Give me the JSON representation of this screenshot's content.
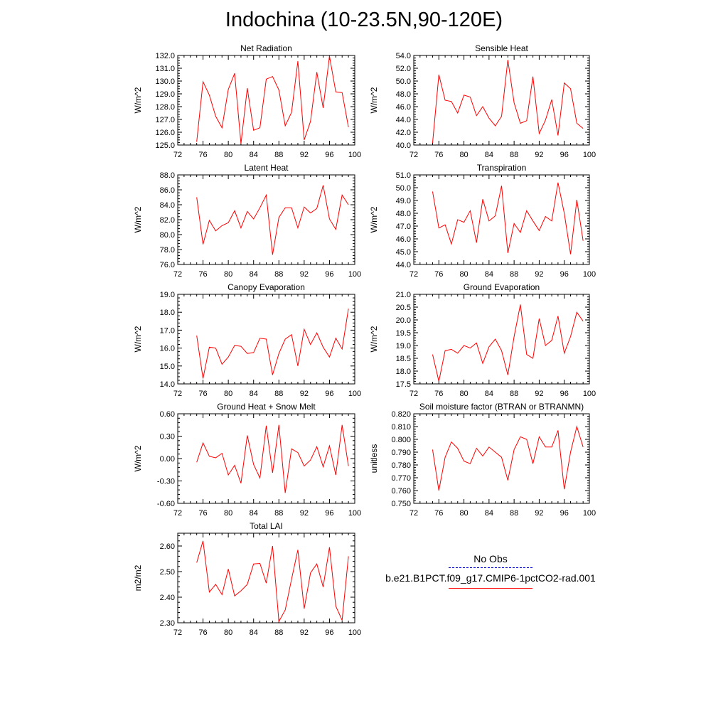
{
  "title": "Indochina (10-23.5N,90-120E)",
  "colors": {
    "series": "#ff0000",
    "obs": "#0000cc",
    "axis": "#000000"
  },
  "legend": {
    "obs_label": "No Obs",
    "model_label": "b.e21.B1PCT.f09_g17.CMIP6-1pctCO2-rad.001"
  },
  "chart_data": [
    {
      "type": "line",
      "title": "Net Radiation",
      "ylabel": "W/m^2",
      "xlim": [
        72,
        100
      ],
      "xticks": [
        "72",
        "76",
        "80",
        "84",
        "88",
        "92",
        "96",
        "100"
      ],
      "ylim": [
        125,
        132
      ],
      "yticks": [
        "125.0",
        "126.0",
        "127.0",
        "128.0",
        "129.0",
        "130.0",
        "131.0",
        "132.0"
      ],
      "x": [
        75,
        76,
        77,
        78,
        79,
        80,
        81,
        82,
        83,
        84,
        85,
        86,
        87,
        88,
        89,
        90,
        91,
        92,
        93,
        94,
        95,
        96,
        97,
        98,
        99
      ],
      "series": [
        {
          "values": [
            125.25,
            129.95,
            128.9,
            127.25,
            126.35,
            129.35,
            130.6,
            125.1,
            129.45,
            126.15,
            126.35,
            130.15,
            130.35,
            129.3,
            126.5,
            127.55,
            131.55,
            125.4,
            126.85,
            130.7,
            127.9,
            131.95,
            129.15,
            129.1,
            126.4
          ]
        }
      ]
    },
    {
      "type": "line",
      "title": "Sensible Heat",
      "ylabel": "W/m^2",
      "xlim": [
        72,
        100
      ],
      "xticks": [
        "72",
        "76",
        "80",
        "84",
        "88",
        "92",
        "96",
        "100"
      ],
      "ylim": [
        40,
        54
      ],
      "yticks": [
        "40.0",
        "42.0",
        "44.0",
        "46.0",
        "48.0",
        "50.0",
        "52.0",
        "54.0"
      ],
      "x": [
        75,
        76,
        77,
        78,
        79,
        80,
        81,
        82,
        83,
        84,
        85,
        86,
        87,
        88,
        89,
        90,
        91,
        92,
        93,
        94,
        95,
        96,
        97,
        98,
        99
      ],
      "series": [
        {
          "values": [
            40.3,
            51.0,
            47.0,
            46.8,
            45.0,
            47.8,
            47.5,
            44.6,
            46.0,
            44.2,
            43.0,
            44.5,
            53.3,
            46.6,
            43.4,
            43.8,
            50.7,
            41.8,
            43.9,
            47.1,
            41.5,
            49.7,
            48.8,
            43.4,
            42.6
          ]
        }
      ]
    },
    {
      "type": "line",
      "title": "Latent Heat",
      "ylabel": "W/m^2",
      "xlim": [
        72,
        100
      ],
      "xticks": [
        "72",
        "76",
        "80",
        "84",
        "88",
        "92",
        "96",
        "100"
      ],
      "ylim": [
        76,
        88
      ],
      "yticks": [
        "76.0",
        "78.0",
        "80.0",
        "82.0",
        "84.0",
        "86.0",
        "88.0"
      ],
      "x": [
        75,
        76,
        77,
        78,
        79,
        80,
        81,
        82,
        83,
        84,
        85,
        86,
        87,
        88,
        89,
        90,
        91,
        92,
        93,
        94,
        95,
        96,
        97,
        98,
        99
      ],
      "series": [
        {
          "values": [
            85.0,
            78.7,
            81.9,
            80.5,
            81.2,
            81.6,
            83.2,
            80.9,
            83.1,
            82.1,
            83.6,
            85.3,
            77.3,
            82.3,
            83.6,
            83.6,
            80.9,
            83.7,
            82.9,
            83.5,
            86.6,
            82.1,
            80.7,
            85.3,
            84.0
          ]
        }
      ]
    },
    {
      "type": "line",
      "title": "Transpiration",
      "ylabel": "W/m^2",
      "xlim": [
        72,
        100
      ],
      "xticks": [
        "72",
        "76",
        "80",
        "84",
        "88",
        "92",
        "96",
        "100"
      ],
      "ylim": [
        44,
        51
      ],
      "yticks": [
        "44.0",
        "45.0",
        "46.0",
        "47.0",
        "48.0",
        "49.0",
        "50.0",
        "51.0"
      ],
      "x": [
        75,
        76,
        77,
        78,
        79,
        80,
        81,
        82,
        83,
        84,
        85,
        86,
        87,
        88,
        89,
        90,
        91,
        92,
        93,
        94,
        95,
        96,
        97,
        98,
        99
      ],
      "series": [
        {
          "values": [
            49.7,
            46.85,
            47.1,
            45.6,
            47.5,
            47.3,
            48.2,
            45.7,
            49.1,
            47.4,
            47.8,
            50.15,
            44.9,
            47.2,
            46.5,
            48.2,
            47.4,
            46.65,
            47.75,
            47.4,
            50.4,
            48.0,
            44.8,
            49.05,
            45.85
          ]
        }
      ]
    },
    {
      "type": "line",
      "title": "Canopy Evaporation",
      "ylabel": "W/m^2",
      "xlim": [
        72,
        100
      ],
      "xticks": [
        "72",
        "76",
        "80",
        "84",
        "88",
        "92",
        "96",
        "100"
      ],
      "ylim": [
        14,
        19
      ],
      "yticks": [
        "14.0",
        "15.0",
        "16.0",
        "17.0",
        "18.0",
        "19.0"
      ],
      "x": [
        75,
        76,
        77,
        78,
        79,
        80,
        81,
        82,
        83,
        84,
        85,
        86,
        87,
        88,
        89,
        90,
        91,
        92,
        93,
        94,
        95,
        96,
        97,
        98,
        99
      ],
      "series": [
        {
          "values": [
            16.7,
            14.3,
            16.05,
            16.0,
            15.1,
            15.5,
            16.15,
            16.1,
            15.7,
            15.75,
            16.55,
            16.5,
            14.5,
            15.7,
            16.5,
            16.75,
            15.0,
            17.05,
            16.2,
            16.85,
            16.05,
            15.5,
            16.55,
            15.95,
            18.2
          ]
        }
      ]
    },
    {
      "type": "line",
      "title": "Ground Evaporation",
      "ylabel": "W/m^2",
      "xlim": [
        72,
        100
      ],
      "xticks": [
        "72",
        "76",
        "80",
        "84",
        "88",
        "92",
        "96",
        "100"
      ],
      "ylim": [
        17.5,
        21
      ],
      "yticks": [
        "17.5",
        "18.0",
        "18.5",
        "19.0",
        "19.5",
        "20.0",
        "20.5",
        "21.0"
      ],
      "x": [
        75,
        76,
        77,
        78,
        79,
        80,
        81,
        82,
        83,
        84,
        85,
        86,
        87,
        88,
        89,
        90,
        91,
        92,
        93,
        94,
        95,
        96,
        97,
        98,
        99
      ],
      "series": [
        {
          "values": [
            18.65,
            17.6,
            18.8,
            18.85,
            18.7,
            19.0,
            18.9,
            19.1,
            18.3,
            18.95,
            19.25,
            18.8,
            17.85,
            19.35,
            20.6,
            18.65,
            18.5,
            20.05,
            19.0,
            19.2,
            20.15,
            18.7,
            19.35,
            20.3,
            19.95
          ]
        }
      ]
    },
    {
      "type": "line",
      "title": "Ground Heat + Snow Melt",
      "ylabel": "W/m^2",
      "xlim": [
        72,
        100
      ],
      "xticks": [
        "72",
        "76",
        "80",
        "84",
        "88",
        "92",
        "96",
        "100"
      ],
      "ylim": [
        -0.6,
        0.6
      ],
      "yticks": [
        "-0.60",
        "-0.30",
        "0.00",
        "0.30",
        "0.60"
      ],
      "x": [
        75,
        76,
        77,
        78,
        79,
        80,
        81,
        82,
        83,
        84,
        85,
        86,
        87,
        88,
        89,
        90,
        91,
        92,
        93,
        94,
        95,
        96,
        97,
        98,
        99
      ],
      "series": [
        {
          "values": [
            -0.05,
            0.21,
            0.03,
            0.01,
            0.07,
            -0.22,
            -0.09,
            -0.33,
            0.31,
            -0.08,
            -0.26,
            0.44,
            -0.19,
            0.45,
            -0.46,
            0.13,
            0.08,
            -0.1,
            -0.02,
            0.16,
            -0.11,
            0.17,
            -0.22,
            0.45,
            -0.1
          ]
        }
      ]
    },
    {
      "type": "line",
      "title": "Soil moisture factor (BTRAN or BTRANMN)",
      "ylabel": "unitless",
      "xlim": [
        72,
        100
      ],
      "xticks": [
        "72",
        "76",
        "80",
        "84",
        "88",
        "92",
        "96",
        "100"
      ],
      "ylim": [
        0.75,
        0.82
      ],
      "yticks": [
        "0.750",
        "0.760",
        "0.770",
        "0.780",
        "0.790",
        "0.800",
        "0.810",
        "0.820"
      ],
      "x": [
        75,
        76,
        77,
        78,
        79,
        80,
        81,
        82,
        83,
        84,
        85,
        86,
        87,
        88,
        89,
        90,
        91,
        92,
        93,
        94,
        95,
        96,
        97,
        98,
        99
      ],
      "series": [
        {
          "values": [
            0.792,
            0.76,
            0.786,
            0.798,
            0.793,
            0.783,
            0.781,
            0.793,
            0.787,
            0.794,
            0.79,
            0.786,
            0.768,
            0.792,
            0.802,
            0.8,
            0.781,
            0.802,
            0.794,
            0.794,
            0.807,
            0.761,
            0.79,
            0.81,
            0.794
          ]
        }
      ]
    },
    {
      "type": "line",
      "title": "Total LAI",
      "ylabel": "m2/m2",
      "xlim": [
        72,
        100
      ],
      "xticks": [
        "72",
        "76",
        "80",
        "84",
        "88",
        "92",
        "96",
        "100"
      ],
      "ylim": [
        2.3,
        2.65
      ],
      "yticks": [
        "2.30",
        "2.40",
        "2.50",
        "2.60"
      ],
      "x": [
        75,
        76,
        77,
        78,
        79,
        80,
        81,
        82,
        83,
        84,
        85,
        86,
        87,
        88,
        89,
        90,
        91,
        92,
        93,
        94,
        95,
        96,
        97,
        98,
        99
      ],
      "series": [
        {
          "values": [
            2.535,
            2.62,
            2.42,
            2.45,
            2.41,
            2.51,
            2.405,
            2.425,
            2.45,
            2.53,
            2.532,
            2.455,
            2.6,
            2.305,
            2.35,
            2.47,
            2.585,
            2.355,
            2.495,
            2.53,
            2.44,
            2.595,
            2.365,
            2.31,
            2.56
          ]
        }
      ]
    }
  ]
}
